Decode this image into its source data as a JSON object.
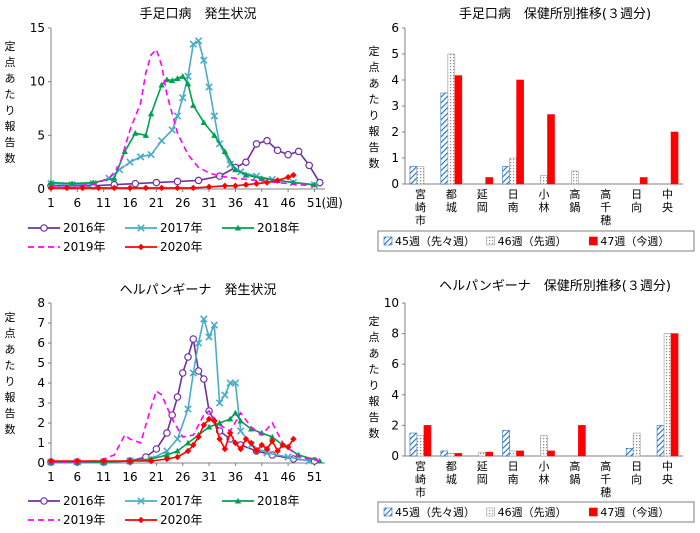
{
  "chart_data": [
    {
      "id": "hfmd_trend",
      "type": "line",
      "title": "手足口病　発生状況",
      "ylabel": "定点あたり報告数",
      "x_unit": "(週)",
      "ylim": [
        0,
        15
      ],
      "yticks": [
        0,
        5,
        10,
        15
      ],
      "xticks": [
        1,
        6,
        11,
        16,
        21,
        26,
        31,
        36,
        41,
        46,
        51
      ],
      "xlim": [
        1,
        53
      ],
      "series": [
        {
          "name": "2016年",
          "color": "#7030A0",
          "marker": "circle",
          "dash": "",
          "points": [
            [
              1,
              0.3
            ],
            [
              5,
              0.3
            ],
            [
              9,
              0.3
            ],
            [
              13,
              0.4
            ],
            [
              17,
              0.5
            ],
            [
              21,
              0.6
            ],
            [
              25,
              0.7
            ],
            [
              29,
              0.8
            ],
            [
              33,
              1.2
            ],
            [
              36,
              2.0
            ],
            [
              38,
              2.5
            ],
            [
              40,
              4.2
            ],
            [
              42,
              4.5
            ],
            [
              44,
              3.6
            ],
            [
              46,
              3.2
            ],
            [
              48,
              3.5
            ],
            [
              50,
              2.2
            ],
            [
              52,
              0.6
            ]
          ]
        },
        {
          "name": "2017年",
          "color": "#4BACC6",
          "marker": "x",
          "dash": "",
          "points": [
            [
              1,
              0.5
            ],
            [
              5,
              0.4
            ],
            [
              9,
              0.5
            ],
            [
              12,
              1.0
            ],
            [
              14,
              1.8
            ],
            [
              16,
              2.5
            ],
            [
              18,
              3.0
            ],
            [
              20,
              3.2
            ],
            [
              22,
              4.5
            ],
            [
              24,
              5.5
            ],
            [
              25,
              6.8
            ],
            [
              26,
              8.5
            ],
            [
              27,
              10.5
            ],
            [
              28,
              13.5
            ],
            [
              29,
              13.8
            ],
            [
              30,
              12.0
            ],
            [
              31,
              9.5
            ],
            [
              32,
              6.8
            ],
            [
              33,
              4.2
            ],
            [
              35,
              2.3
            ],
            [
              37,
              1.6
            ],
            [
              40,
              1.2
            ],
            [
              43,
              0.9
            ],
            [
              47,
              0.6
            ],
            [
              51,
              0.4
            ]
          ]
        },
        {
          "name": "2018年",
          "color": "#00A050",
          "marker": "triangle",
          "dash": "",
          "points": [
            [
              1,
              0.6
            ],
            [
              5,
              0.5
            ],
            [
              9,
              0.6
            ],
            [
              13,
              1.0
            ],
            [
              15,
              3.5
            ],
            [
              17,
              5.2
            ],
            [
              19,
              5.0
            ],
            [
              20,
              7.0
            ],
            [
              22,
              9.7
            ],
            [
              23,
              10.2
            ],
            [
              24,
              10.1
            ],
            [
              25,
              10.3
            ],
            [
              26,
              10.5
            ],
            [
              27,
              9.8
            ],
            [
              28,
              7.8
            ],
            [
              30,
              6.2
            ],
            [
              32,
              5.0
            ],
            [
              34,
              3.5
            ],
            [
              36,
              1.8
            ],
            [
              38,
              1.3
            ],
            [
              41,
              1.0
            ],
            [
              44,
              0.8
            ],
            [
              47,
              0.6
            ],
            [
              51,
              0.4
            ]
          ]
        },
        {
          "name": "2019年",
          "color": "#FF00FF",
          "marker": "none",
          "dash": "6,4",
          "points": [
            [
              1,
              0.3
            ],
            [
              5,
              0.3
            ],
            [
              9,
              0.4
            ],
            [
              12,
              1.0
            ],
            [
              14,
              2.2
            ],
            [
              16,
              5.5
            ],
            [
              18,
              8.0
            ],
            [
              19,
              10.8
            ],
            [
              20,
              12.5
            ],
            [
              21,
              13.0
            ],
            [
              22,
              11.5
            ],
            [
              23,
              8.8
            ],
            [
              25,
              5.2
            ],
            [
              27,
              3.2
            ],
            [
              29,
              2.0
            ],
            [
              31,
              1.5
            ],
            [
              33,
              1.2
            ],
            [
              36,
              1.0
            ],
            [
              40,
              0.8
            ],
            [
              44,
              0.6
            ],
            [
              48,
              0.4
            ],
            [
              51,
              0.3
            ]
          ]
        },
        {
          "name": "2020年",
          "color": "#FF0000",
          "marker": "diamond",
          "dash": "",
          "points": [
            [
              1,
              0.1
            ],
            [
              4,
              0.1
            ],
            [
              7,
              0.1
            ],
            [
              10,
              0.1
            ],
            [
              13,
              0.1
            ],
            [
              16,
              0.1
            ],
            [
              19,
              0.1
            ],
            [
              22,
              0.1
            ],
            [
              25,
              0.1
            ],
            [
              28,
              0.1
            ],
            [
              31,
              0.2
            ],
            [
              34,
              0.3
            ],
            [
              36,
              0.3
            ],
            [
              38,
              0.4
            ],
            [
              40,
              0.5
            ],
            [
              42,
              0.6
            ],
            [
              44,
              0.8
            ],
            [
              46,
              1.1
            ],
            [
              47,
              1.3
            ]
          ]
        }
      ]
    },
    {
      "id": "hfmd_bars",
      "type": "bar",
      "title": "手足口病　保健所別推移(３週分)",
      "ylabel": "定点あたり報告数",
      "ylim": [
        0,
        6
      ],
      "yticks": [
        0,
        1,
        2,
        3,
        4,
        5,
        6
      ],
      "categories": [
        "宮崎市",
        "都城",
        "延岡",
        "日南",
        "小林",
        "高鍋",
        "高千穂",
        "日向",
        "中央"
      ],
      "series": [
        {
          "name": "45週（先々週）",
          "values": [
            0.67,
            3.5,
            0,
            0.67,
            0,
            0,
            0,
            0,
            0
          ]
        },
        {
          "name": "46週（先週）",
          "values": [
            0.67,
            5.0,
            0,
            1.0,
            0.33,
            0.5,
            0,
            0,
            0
          ]
        },
        {
          "name": "47週（今週）",
          "values": [
            0,
            4.17,
            0.25,
            4.0,
            2.67,
            0,
            0,
            0.25,
            2.0
          ]
        }
      ]
    },
    {
      "id": "herp_trend",
      "type": "line",
      "title": "ヘルパンギーナ　発生状況",
      "ylabel": "定点あたり報告数",
      "ylim": [
        0,
        8
      ],
      "yticks": [
        0,
        1,
        2,
        3,
        4,
        5,
        6,
        7,
        8
      ],
      "xticks": [
        1,
        6,
        11,
        16,
        21,
        26,
        31,
        36,
        41,
        46,
        51
      ],
      "xlim": [
        1,
        53
      ],
      "series": [
        {
          "name": "2016年",
          "color": "#7030A0",
          "marker": "circle",
          "dash": "",
          "points": [
            [
              1,
              0.05
            ],
            [
              6,
              0.05
            ],
            [
              11,
              0.05
            ],
            [
              16,
              0.1
            ],
            [
              19,
              0.3
            ],
            [
              21,
              0.7
            ],
            [
              23,
              1.5
            ],
            [
              24,
              2.4
            ],
            [
              25,
              3.3
            ],
            [
              26,
              4.5
            ],
            [
              27,
              5.3
            ],
            [
              28,
              6.2
            ],
            [
              29,
              4.6
            ],
            [
              30,
              4.2
            ],
            [
              31,
              2.6
            ],
            [
              33,
              1.6
            ],
            [
              35,
              1.2
            ],
            [
              37,
              0.9
            ],
            [
              40,
              0.6
            ],
            [
              43,
              0.4
            ],
            [
              47,
              0.2
            ],
            [
              51,
              0.1
            ]
          ]
        },
        {
          "name": "2017年",
          "color": "#4BACC6",
          "marker": "x",
          "dash": "",
          "points": [
            [
              1,
              0.05
            ],
            [
              6,
              0.05
            ],
            [
              11,
              0.05
            ],
            [
              16,
              0.1
            ],
            [
              20,
              0.2
            ],
            [
              23,
              0.6
            ],
            [
              25,
              1.2
            ],
            [
              27,
              2.7
            ],
            [
              28,
              4.5
            ],
            [
              29,
              6.0
            ],
            [
              30,
              7.2
            ],
            [
              31,
              6.3
            ],
            [
              32,
              6.9
            ],
            [
              33,
              3.0
            ],
            [
              34,
              3.4
            ],
            [
              35,
              4.0
            ],
            [
              36,
              4.0
            ],
            [
              37,
              1.6
            ],
            [
              39,
              0.9
            ],
            [
              42,
              0.5
            ],
            [
              46,
              0.3
            ],
            [
              50,
              0.1
            ]
          ]
        },
        {
          "name": "2018年",
          "color": "#00A050",
          "marker": "triangle",
          "dash": "",
          "points": [
            [
              1,
              0.05
            ],
            [
              6,
              0.05
            ],
            [
              11,
              0.05
            ],
            [
              16,
              0.1
            ],
            [
              20,
              0.2
            ],
            [
              23,
              0.4
            ],
            [
              25,
              0.6
            ],
            [
              27,
              1.0
            ],
            [
              29,
              1.4
            ],
            [
              31,
              1.8
            ],
            [
              33,
              2.0
            ],
            [
              35,
              2.2
            ],
            [
              36,
              2.5
            ],
            [
              37,
              2.1
            ],
            [
              39,
              1.7
            ],
            [
              41,
              1.5
            ],
            [
              43,
              1.3
            ],
            [
              45,
              0.9
            ],
            [
              48,
              0.4
            ],
            [
              52,
              0.1
            ]
          ]
        },
        {
          "name": "2019年",
          "color": "#FF00FF",
          "marker": "none",
          "dash": "6,4",
          "points": [
            [
              1,
              0.05
            ],
            [
              6,
              0.05
            ],
            [
              10,
              0.1
            ],
            [
              13,
              0.4
            ],
            [
              15,
              1.4
            ],
            [
              16,
              1.2
            ],
            [
              18,
              1.0
            ],
            [
              20,
              2.8
            ],
            [
              21,
              3.6
            ],
            [
              22,
              3.4
            ],
            [
              24,
              2.2
            ],
            [
              26,
              1.3
            ],
            [
              28,
              1.4
            ],
            [
              30,
              2.4
            ],
            [
              31,
              2.6
            ],
            [
              33,
              1.9
            ],
            [
              35,
              1.6
            ],
            [
              37,
              2.5
            ],
            [
              39,
              1.8
            ],
            [
              41,
              1.4
            ],
            [
              43,
              2.0
            ],
            [
              45,
              1.0
            ],
            [
              48,
              0.3
            ],
            [
              52,
              0.1
            ]
          ]
        },
        {
          "name": "2020年",
          "color": "#FF0000",
          "marker": "diamond",
          "dash": "",
          "points": [
            [
              1,
              0.1
            ],
            [
              6,
              0.1
            ],
            [
              11,
              0.1
            ],
            [
              16,
              0.1
            ],
            [
              20,
              0.1
            ],
            [
              23,
              0.2
            ],
            [
              25,
              0.3
            ],
            [
              27,
              0.6
            ],
            [
              28,
              0.9
            ],
            [
              29,
              1.3
            ],
            [
              30,
              1.9
            ],
            [
              31,
              2.2
            ],
            [
              32,
              2.1
            ],
            [
              33,
              1.2
            ],
            [
              34,
              0.7
            ],
            [
              35,
              1.5
            ],
            [
              36,
              1.0
            ],
            [
              37,
              0.7
            ],
            [
              38,
              1.2
            ],
            [
              39,
              1.0
            ],
            [
              40,
              0.6
            ],
            [
              41,
              0.9
            ],
            [
              42,
              0.7
            ],
            [
              43,
              1.1
            ],
            [
              44,
              0.6
            ],
            [
              45,
              0.9
            ],
            [
              46,
              0.8
            ],
            [
              47,
              1.2
            ]
          ]
        }
      ]
    },
    {
      "id": "herp_bars",
      "type": "bar",
      "title": "ヘルパンギーナ　保健所別推移(３週分)",
      "ylabel": "定点あたり報告数",
      "ylim": [
        0,
        10
      ],
      "yticks": [
        0,
        2,
        4,
        6,
        8,
        10
      ],
      "categories": [
        "宮崎市",
        "都城",
        "延岡",
        "日南",
        "小林",
        "高鍋",
        "高千穂",
        "日向",
        "中央"
      ],
      "series": [
        {
          "name": "45週（先々週）",
          "values": [
            1.5,
            0.33,
            0,
            1.67,
            0,
            0,
            0,
            0.5,
            2.0
          ]
        },
        {
          "name": "46週（先週）",
          "values": [
            1.33,
            0.17,
            0.25,
            0.33,
            1.33,
            0,
            0,
            1.5,
            8.0
          ]
        },
        {
          "name": "47週（今週）",
          "values": [
            2.0,
            0.17,
            0.25,
            0.33,
            0.33,
            2.0,
            0,
            0,
            8.0
          ]
        }
      ]
    }
  ]
}
